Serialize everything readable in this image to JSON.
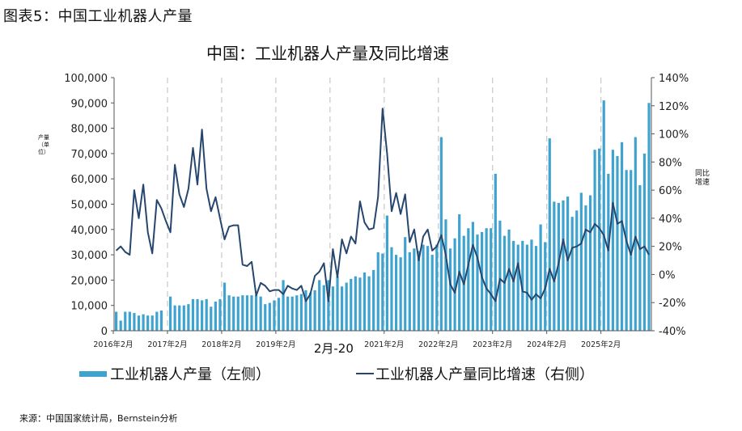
{
  "figure_label": "图表5：中国工业机器人产量",
  "source": "来源：中国国家统计局，Bernstein分析",
  "colors": {
    "bars": "#3fa3cf",
    "line": "#26466e",
    "grid_dash": "#c8c8c8",
    "axis": "#555555"
  },
  "chart_data": {
    "type": "bar+line",
    "title": "中国：工业机器人产量及同比增速",
    "ylabel_left": "产量（单位）",
    "ylabel_right": "同比增速",
    "ylim_left": [
      0,
      100000
    ],
    "ylim_right": [
      -40,
      140
    ],
    "left_ticks": [
      "100,000",
      "90,000",
      "80,000",
      "70,000",
      "60,000",
      "50,000",
      "40,000",
      "30,000",
      "20,000",
      "10,000",
      "0"
    ],
    "right_ticks": [
      "140%",
      "120%",
      "100%",
      "80%",
      "60%",
      "40%",
      "20%",
      "0%",
      "-20%",
      "-40%"
    ],
    "x_labels": [
      "2016年2月",
      "2017年2月",
      "2018年2月",
      "2019年2月",
      "2021年2月",
      "2022年2月",
      "2023年2月",
      "2024年2月",
      "2025年2月"
    ],
    "x_label_month_index": [
      0,
      12,
      24,
      36,
      60,
      72,
      84,
      96,
      108
    ],
    "annotation": "2月-20",
    "annotation_month_index": 48,
    "start_month": "2016-02",
    "grid_x": "dashed vertical lines at each February",
    "series": [
      {
        "name": "工业机器人产量（左侧）",
        "kind": "bar",
        "axis": "left",
        "values": [
          7500,
          4000,
          7500,
          7500,
          7000,
          6000,
          6500,
          6000,
          6000,
          7500,
          8000,
          0,
          13500,
          10000,
          10000,
          10000,
          10500,
          12500,
          12500,
          12000,
          12500,
          9500,
          11500,
          12500,
          19000,
          14000,
          13500,
          13500,
          14000,
          14000,
          14000,
          14000,
          13500,
          10500,
          11000,
          12000,
          13000,
          20000,
          13500,
          13500,
          14000,
          14500,
          16000,
          15000,
          16000,
          20000,
          18000,
          20000,
          17500,
          21500,
          17500,
          19000,
          20500,
          21500,
          21000,
          23000,
          21500,
          24000,
          31000,
          30500,
          45500,
          33000,
          30000,
          29000,
          37000,
          31000,
          32500,
          31500,
          34000,
          33500,
          30000,
          34000,
          76500,
          44000,
          32500,
          36500,
          46000,
          37500,
          40500,
          43000,
          38000,
          39000,
          40500,
          40500,
          62000,
          43500,
          37500,
          40000,
          35500,
          34000,
          35500,
          34000,
          36000,
          33500,
          42000,
          35000,
          76000,
          51000,
          50500,
          51500,
          53000,
          45000,
          47500,
          54500,
          49500,
          53500,
          71500,
          72000,
          91000,
          62000,
          71500,
          69000,
          74500,
          63500,
          63500,
          76500,
          57500,
          70000,
          90000
        ]
      },
      {
        "name": "工业机器人产量同比增速（右侧）",
        "kind": "line",
        "axis": "right",
        "values": [
          17,
          20,
          16,
          14,
          60,
          40,
          64,
          30,
          15,
          53,
          47,
          38,
          30,
          78,
          57,
          48,
          61,
          90,
          64,
          103,
          61,
          45,
          55,
          40,
          25,
          34,
          35,
          35,
          7,
          6,
          9,
          -15,
          -6,
          -8,
          -12,
          -11,
          -11,
          -14,
          -8,
          -10,
          -11,
          -8,
          -19,
          -14,
          -1,
          2,
          8,
          -19,
          18,
          -2,
          25,
          15,
          27,
          22,
          52,
          37,
          32,
          33,
          55,
          118,
          86,
          45,
          58,
          43,
          57,
          23,
          32,
          10,
          27,
          32,
          17,
          20,
          28,
          14,
          -7,
          -13,
          2,
          -7,
          7,
          21,
          12,
          -2,
          -10,
          -14,
          -19,
          -3,
          -6,
          4,
          -5,
          8,
          -12,
          -13,
          -18,
          -14,
          -17,
          -10,
          4,
          -5,
          8,
          25,
          10,
          19,
          20,
          22,
          32,
          30,
          36,
          33,
          28,
          17,
          51,
          36,
          38,
          24,
          14,
          27,
          18,
          20,
          14
        ]
      }
    ]
  }
}
